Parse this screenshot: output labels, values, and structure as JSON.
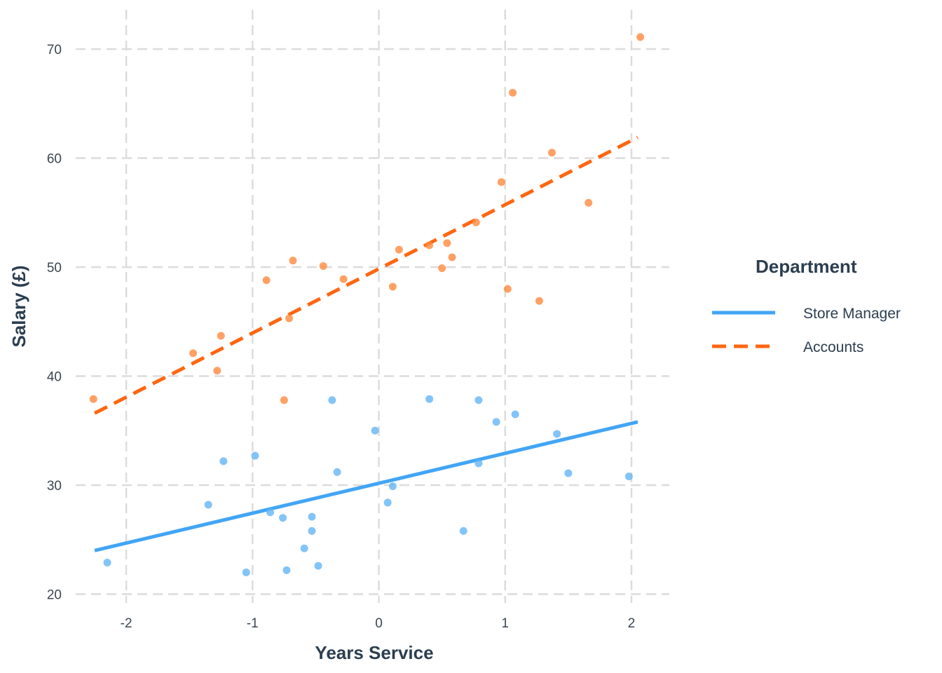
{
  "chart_data": {
    "type": "scatter",
    "xlabel": "Years Service",
    "ylabel": "Salary (£)",
    "xlim": [
      -2.4,
      2.3
    ],
    "ylim": [
      19.2,
      73.6
    ],
    "x_ticks": [
      -2,
      -1,
      0,
      1,
      2
    ],
    "y_ticks": [
      20,
      30,
      40,
      50,
      60,
      70
    ],
    "grid": true,
    "grid_style": "dashed",
    "legend": {
      "title": "Department",
      "position": "right"
    },
    "series": [
      {
        "name": "Store Manager",
        "color": "#42a5f5",
        "point_color": "#64b5f6",
        "line_style": "solid",
        "trend_line": {
          "x": [
            -2.25,
            2.05
          ],
          "y": [
            24.0,
            35.8
          ]
        },
        "points": [
          [
            -2.15,
            22.9
          ],
          [
            -1.35,
            28.2
          ],
          [
            -1.23,
            32.2
          ],
          [
            -1.05,
            22.0
          ],
          [
            -0.98,
            32.7
          ],
          [
            -0.86,
            27.5
          ],
          [
            -0.76,
            27.0
          ],
          [
            -0.73,
            22.2
          ],
          [
            -0.59,
            24.2
          ],
          [
            -0.53,
            27.1
          ],
          [
            -0.53,
            25.8
          ],
          [
            -0.48,
            22.6
          ],
          [
            -0.37,
            37.8
          ],
          [
            -0.33,
            31.2
          ],
          [
            -0.03,
            35.0
          ],
          [
            0.07,
            28.4
          ],
          [
            0.11,
            29.9
          ],
          [
            0.4,
            37.9
          ],
          [
            0.67,
            25.8
          ],
          [
            0.79,
            37.8
          ],
          [
            0.79,
            32.0
          ],
          [
            0.93,
            35.8
          ],
          [
            1.08,
            36.5
          ],
          [
            1.41,
            34.7
          ],
          [
            1.5,
            31.1
          ],
          [
            1.98,
            30.8
          ]
        ]
      },
      {
        "name": "Accounts",
        "color": "#ff6611",
        "point_color": "#ff8a3d",
        "line_style": "dashed",
        "trend_line": {
          "x": [
            -2.25,
            2.05
          ],
          "y": [
            36.6,
            61.9
          ]
        },
        "points": [
          [
            -2.26,
            37.9
          ],
          [
            -1.47,
            42.1
          ],
          [
            -1.28,
            40.5
          ],
          [
            -1.25,
            43.7
          ],
          [
            -0.89,
            48.8
          ],
          [
            -0.75,
            37.8
          ],
          [
            -0.71,
            45.3
          ],
          [
            -0.68,
            50.6
          ],
          [
            -0.44,
            50.1
          ],
          [
            -0.28,
            48.9
          ],
          [
            0.11,
            48.2
          ],
          [
            0.16,
            51.6
          ],
          [
            0.4,
            52.0
          ],
          [
            0.5,
            49.9
          ],
          [
            0.54,
            52.2
          ],
          [
            0.58,
            50.9
          ],
          [
            0.77,
            54.1
          ],
          [
            0.97,
            57.8
          ],
          [
            1.02,
            48.0
          ],
          [
            1.06,
            66.0
          ],
          [
            1.27,
            46.9
          ],
          [
            1.37,
            60.5
          ],
          [
            1.66,
            55.9
          ],
          [
            2.07,
            71.1
          ]
        ]
      }
    ]
  }
}
